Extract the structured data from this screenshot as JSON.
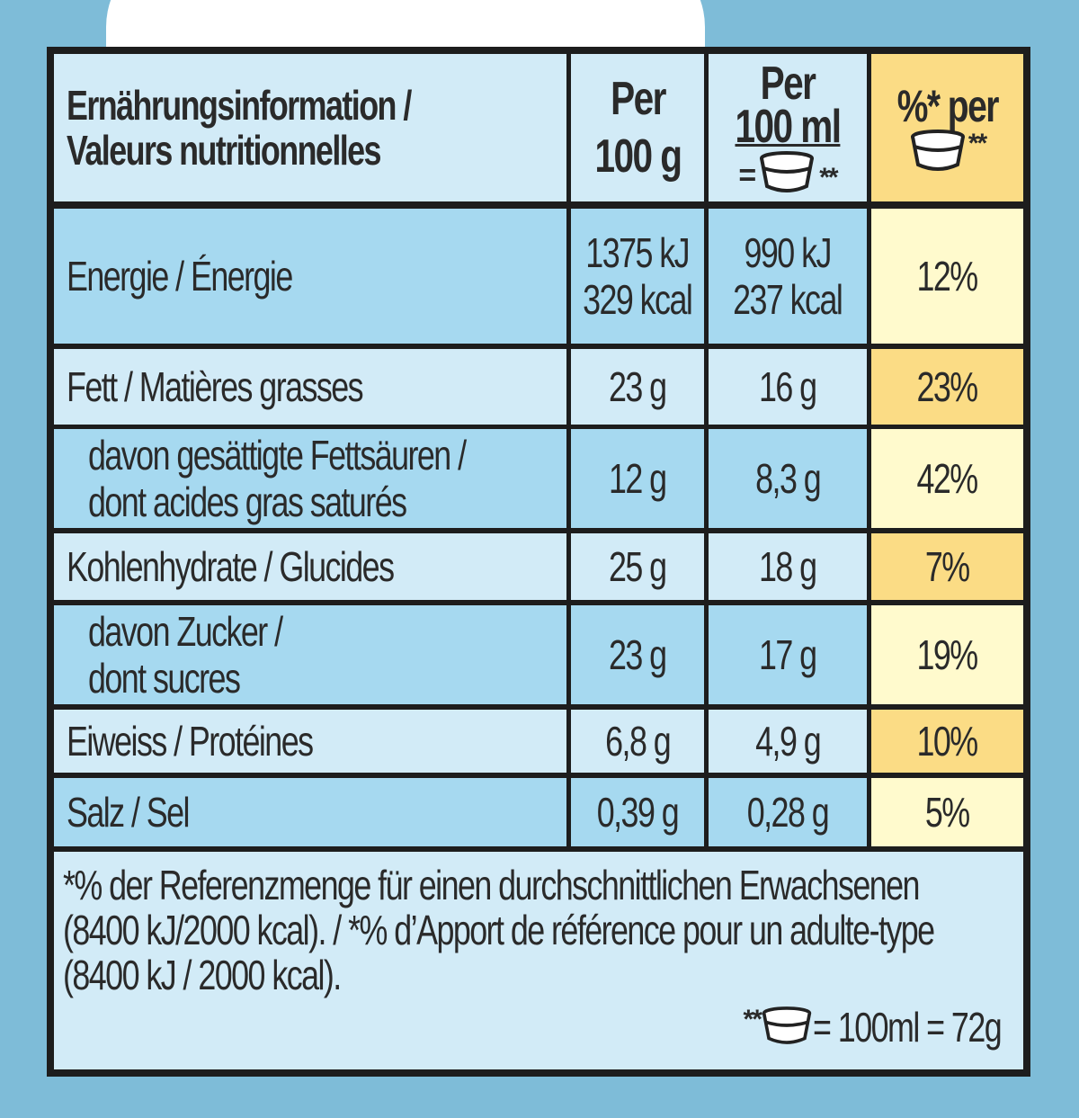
{
  "header": {
    "title_line1": "Ernährungsinformation /",
    "title_line2": "Valeurs nutritionnelles",
    "col1_line1": "Per",
    "col1_line2": "100 g",
    "col2_line1": "Per",
    "col2_line2": "100 ml",
    "col2_eq": "=",
    "col2_ast": "**",
    "col3_line1": "%* per",
    "col3_ast": "**"
  },
  "rows": [
    {
      "label_line1": "Energie / Énergie",
      "label_line2": "",
      "per100g_line1": "1375 kJ",
      "per100g_line2": "329 kcal",
      "per100ml_line1": "990 kJ",
      "per100ml_line2": "237 kcal",
      "percent": "12%"
    },
    {
      "label_line1": "Fett / Matières grasses",
      "label_line2": "",
      "per100g_line1": "23 g",
      "per100g_line2": "",
      "per100ml_line1": "16 g",
      "per100ml_line2": "",
      "percent": "23%"
    },
    {
      "label_line1": "davon gesättigte Fettsäuren /",
      "label_line2": "dont acides gras saturés",
      "per100g_line1": "12 g",
      "per100g_line2": "",
      "per100ml_line1": "8,3 g",
      "per100ml_line2": "",
      "percent": "42%"
    },
    {
      "label_line1": "Kohlenhydrate / Glucides",
      "label_line2": "",
      "per100g_line1": "25 g",
      "per100g_line2": "",
      "per100ml_line1": "18 g",
      "per100ml_line2": "",
      "percent": "7%"
    },
    {
      "label_line1": "davon Zucker /",
      "label_line2": "dont sucres",
      "per100g_line1": "23 g",
      "per100g_line2": "",
      "per100ml_line1": "17 g",
      "per100ml_line2": "",
      "percent": "19%"
    },
    {
      "label_line1": "Eiweiss / Protéines",
      "label_line2": "",
      "per100g_line1": "6,8 g",
      "per100g_line2": "",
      "per100ml_line1": "4,9 g",
      "per100ml_line2": "",
      "percent": "10%"
    },
    {
      "label_line1": "Salz / Sel",
      "label_line2": "",
      "per100g_line1": "0,39 g",
      "per100g_line2": "",
      "per100ml_line1": "0,28 g",
      "per100ml_line2": "",
      "percent": "5%"
    }
  ],
  "footnote": {
    "line1": "*% der Referenzmenge für einen durchschnittlichen Erwachsenen",
    "line2": "(8400 kJ/2000 kcal). / *% d’Apport de référence pour un adulte-type",
    "line3": "(8400 kJ / 2000 kcal).",
    "note_prefix": "**",
    "note_suffix": "= 100ml = 72g"
  },
  "colors": {
    "header_blue": "#d2ebf7",
    "row_blue": "#a6d9f0",
    "pale_yellow": "#fffacd",
    "gold_yellow": "#fbdc85",
    "outer_background": "#7ebcd8"
  },
  "icons": {
    "portion": "cup-icon"
  }
}
